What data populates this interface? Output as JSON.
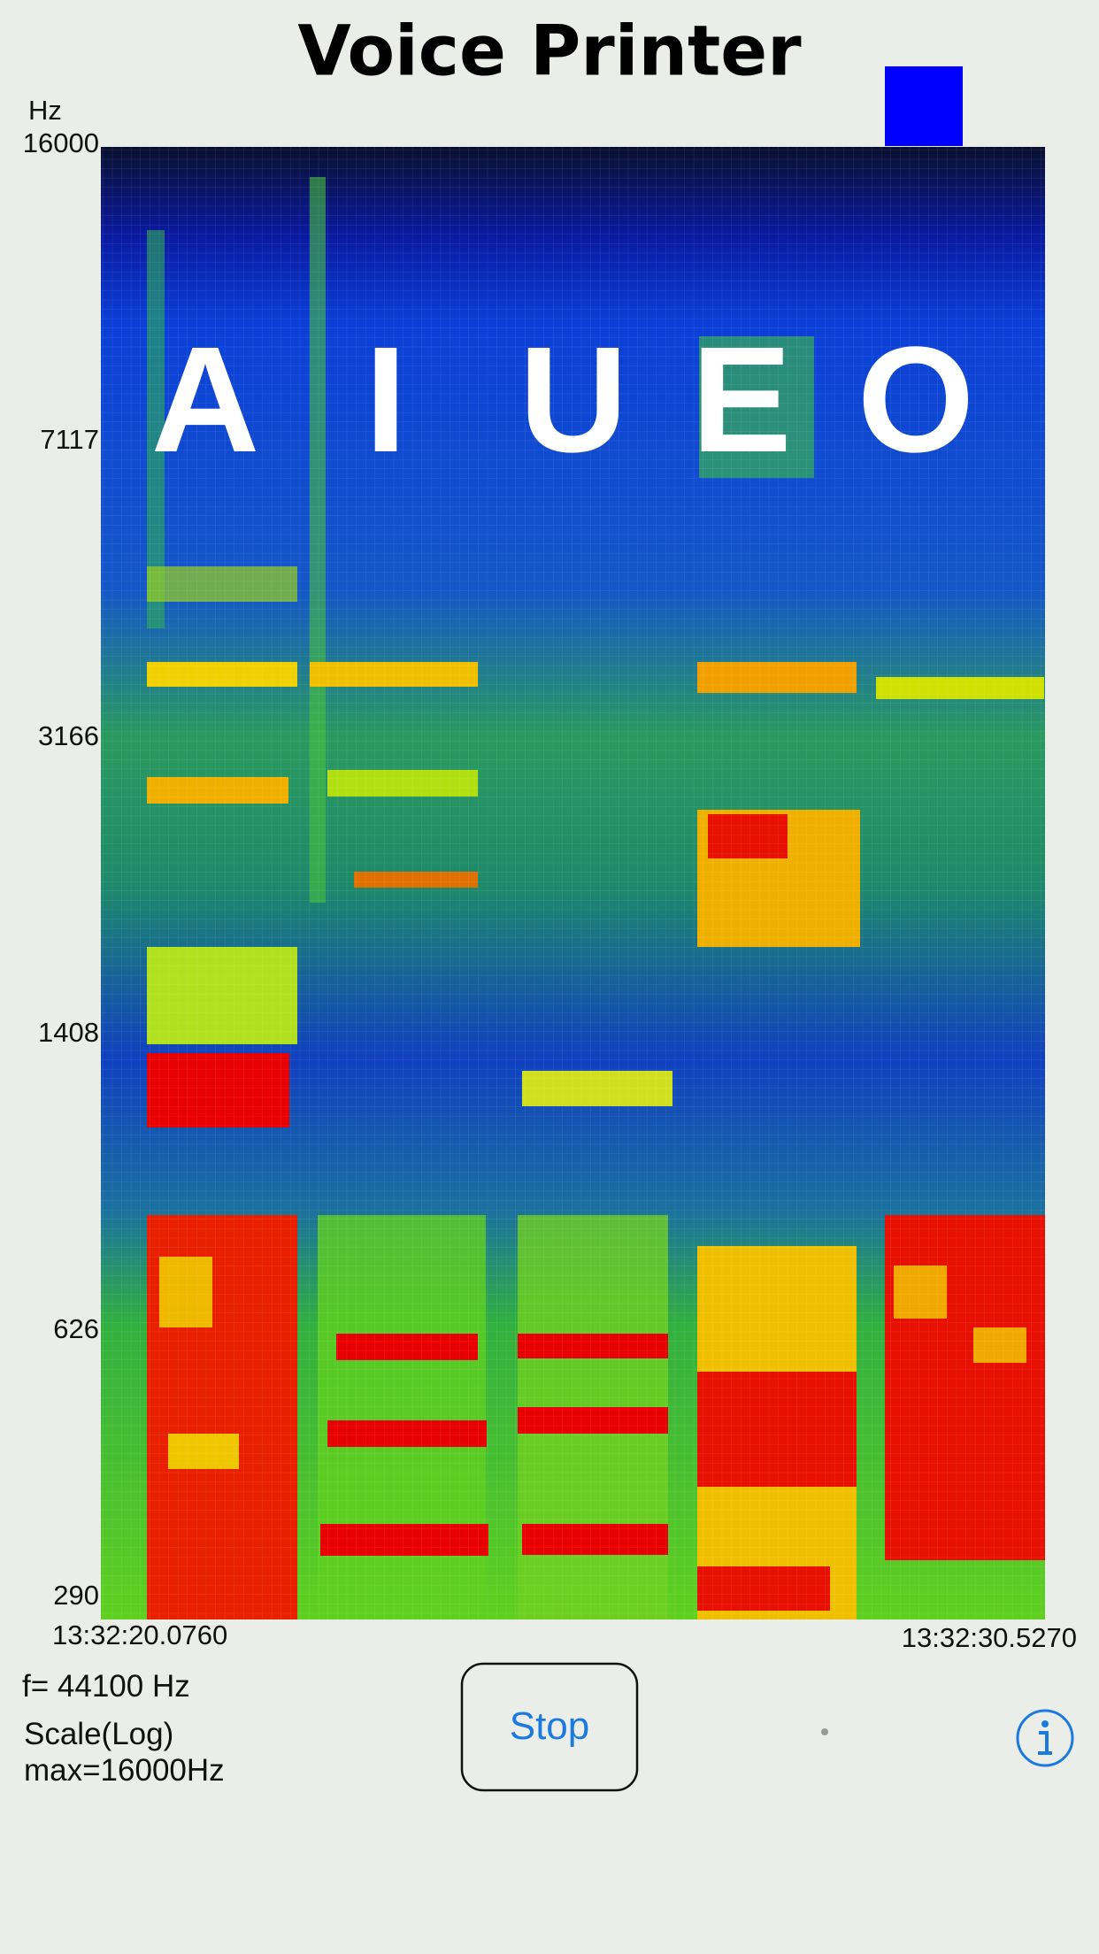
{
  "header": {
    "title": "Voice Printer"
  },
  "axis": {
    "unit": "Hz",
    "labels": [
      "16000",
      "7117",
      "3166",
      "1408",
      "626",
      "290"
    ]
  },
  "time": {
    "start": "13:32:20.0760",
    "end": "13:32:30.5270"
  },
  "status": {
    "sample_rate": "f= 44100 Hz",
    "scale": "Scale(Log)",
    "max": "max=16000Hz"
  },
  "controls": {
    "button": "Stop"
  },
  "overlay": {
    "vowels": [
      "A",
      "I",
      "U",
      "E",
      "O"
    ]
  }
}
